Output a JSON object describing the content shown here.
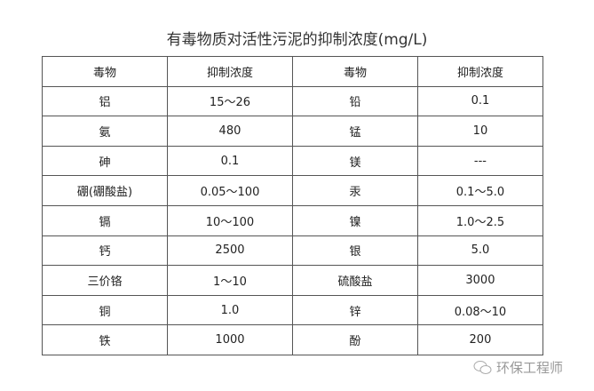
{
  "title": "有毒物质对活性污泥的抑制浓度(mg/L)",
  "table": {
    "headers": [
      "毒物",
      "抑制浓度",
      "毒物",
      "抑制浓度"
    ],
    "rows": [
      [
        "铝",
        "15～26",
        "铅",
        "0.1"
      ],
      [
        "氨",
        "480",
        "锰",
        "10"
      ],
      [
        "砷",
        "0.1",
        "镁",
        "---"
      ],
      [
        "硼(硼酸盐)",
        "0.05～100",
        "汞",
        "0.1～5.0"
      ],
      [
        "镉",
        "10～100",
        "镍",
        "1.0～2.5"
      ],
      [
        "钙",
        "2500",
        "银",
        "5.0"
      ],
      [
        "三价铬",
        "1～10",
        "硫酸盐",
        "3000"
      ],
      [
        "铜",
        "1.0",
        "锌",
        "0.08～10"
      ],
      [
        "铁",
        "1000",
        "酚",
        "200"
      ]
    ]
  },
  "watermark": {
    "text": "环保工程师",
    "icon": "wechat-icon"
  }
}
